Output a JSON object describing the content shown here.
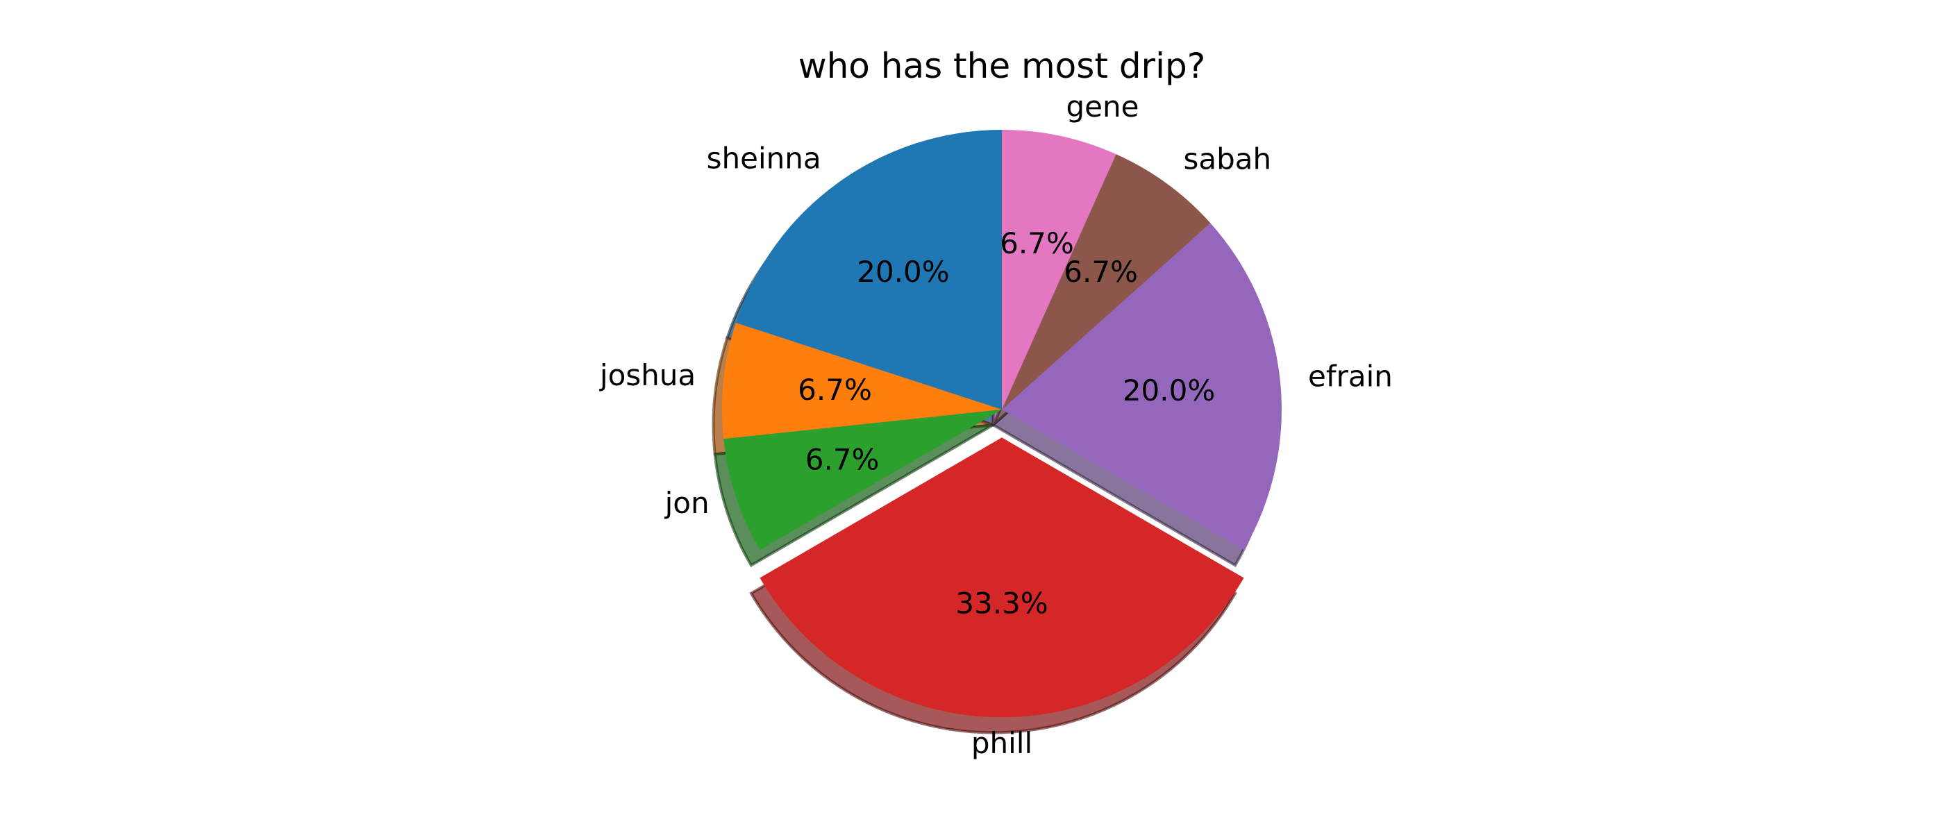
{
  "chart_data": {
    "type": "pie",
    "title": "who has the most drip?",
    "slices": [
      {
        "label": "sheinna",
        "value": 20.0,
        "pct_label": "20.0%",
        "color": "#1f77b4",
        "exploded": false
      },
      {
        "label": "joshua",
        "value": 6.7,
        "pct_label": "6.7%",
        "color": "#ff7f0e",
        "exploded": false
      },
      {
        "label": "jon",
        "value": 6.7,
        "pct_label": "6.7%",
        "color": "#2ca02c",
        "exploded": false
      },
      {
        "label": "phill",
        "value": 33.3,
        "pct_label": "33.3%",
        "color": "#d62728",
        "exploded": true
      },
      {
        "label": "efrain",
        "value": 20.0,
        "pct_label": "20.0%",
        "color": "#9467bd",
        "exploded": false
      },
      {
        "label": "sabah",
        "value": 6.7,
        "pct_label": "6.7%",
        "color": "#8c564b",
        "exploded": false
      },
      {
        "label": "gene",
        "value": 6.7,
        "pct_label": "6.7%",
        "color": "#e377c2",
        "exploded": false
      }
    ],
    "start_angle_deg": 90,
    "direction": "counterclockwise",
    "shadow": true,
    "legend": false
  }
}
